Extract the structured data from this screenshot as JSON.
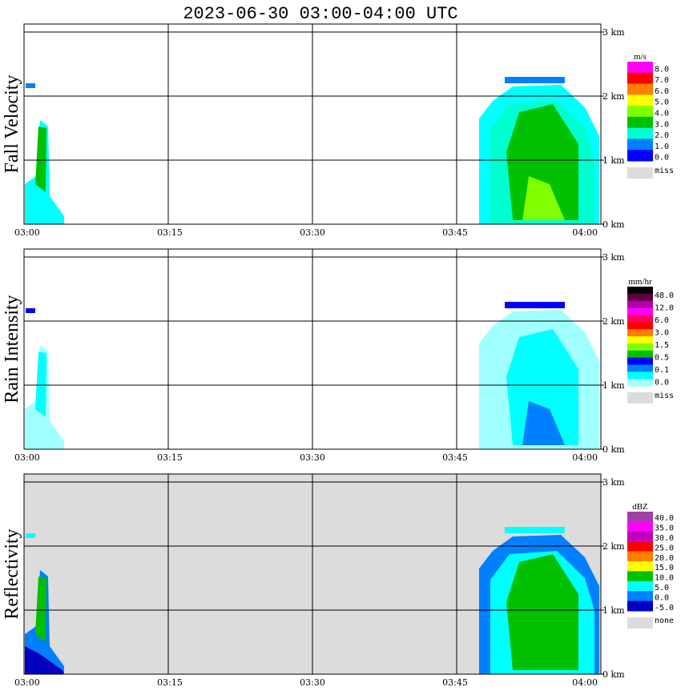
{
  "title": "2023-06-30   03:00-04:00 UTC",
  "chart_data": [
    {
      "type": "heatmap",
      "ylabel": "Fall Velocity",
      "x_ticks": [
        "03:00",
        "03:15",
        "03:30",
        "03:45",
        "04:00"
      ],
      "y_ticks": [
        "0 km",
        "1 km",
        "2 km",
        "3 km"
      ],
      "ylim": [
        0,
        3.0
      ],
      "xlim": [
        "03:00",
        "04:00"
      ],
      "colorbar": {
        "unit": "m/s",
        "labels": [
          "8.0",
          "7.0",
          "6.0",
          "5.0",
          "4.0",
          "3.0",
          "2.0",
          "1.0",
          "0.0"
        ],
        "colors": [
          "#ff00ff",
          "#ff0000",
          "#ff8000",
          "#ffff00",
          "#80ff00",
          "#00c000",
          "#00ffd0",
          "#0080ff",
          "#0000ff"
        ],
        "missing_label": "miss"
      }
    },
    {
      "type": "heatmap",
      "ylabel": "Rain Intensity",
      "x_ticks": [
        "03:00",
        "03:15",
        "03:30",
        "03:45",
        "04:00"
      ],
      "y_ticks": [
        "0 km",
        "1 km",
        "2 km",
        "3 km"
      ],
      "ylim": [
        0,
        3.0
      ],
      "xlim": [
        "03:00",
        "04:00"
      ],
      "colorbar": {
        "unit": "mm/hr",
        "labels": [
          "48.0",
          "12.0",
          "6.0",
          "3.0",
          "1.5",
          "0.5",
          "0.1",
          "0.0"
        ],
        "colors": [
          "#000000",
          "#600040",
          "#b000b0",
          "#ff00ff",
          "#ff0060",
          "#ff0000",
          "#ff8000",
          "#ffff00",
          "#80ff00",
          "#00c000",
          "#0000ff",
          "#0080ff",
          "#00ffff",
          "#a0ffff"
        ],
        "missing_label": "miss"
      }
    },
    {
      "type": "heatmap",
      "ylabel": "Reflectivity",
      "x_ticks": [
        "03:00",
        "03:15",
        "03:30",
        "03:45",
        "04:00"
      ],
      "y_ticks": [
        "0 km",
        "1 km",
        "2 km",
        "3 km"
      ],
      "ylim": [
        0,
        3.0
      ],
      "xlim": [
        "03:00",
        "04:00"
      ],
      "colorbar": {
        "unit": "dBZ",
        "labels": [
          "40.0",
          "35.0",
          "30.0",
          "25.0",
          "20.0",
          "15.0",
          "10.0",
          "5.0",
          "0.0",
          "-5.0"
        ],
        "colors": [
          "#a040a0",
          "#ff00ff",
          "#c000c0",
          "#ff0000",
          "#ff8000",
          "#ffff00",
          "#00c000",
          "#00ffff",
          "#0080ff",
          "#0000c0"
        ],
        "missing_label": "none"
      }
    }
  ],
  "colors": {
    "missing": "#dcdcdc",
    "background": "#ffffff",
    "grid": "#000000"
  }
}
